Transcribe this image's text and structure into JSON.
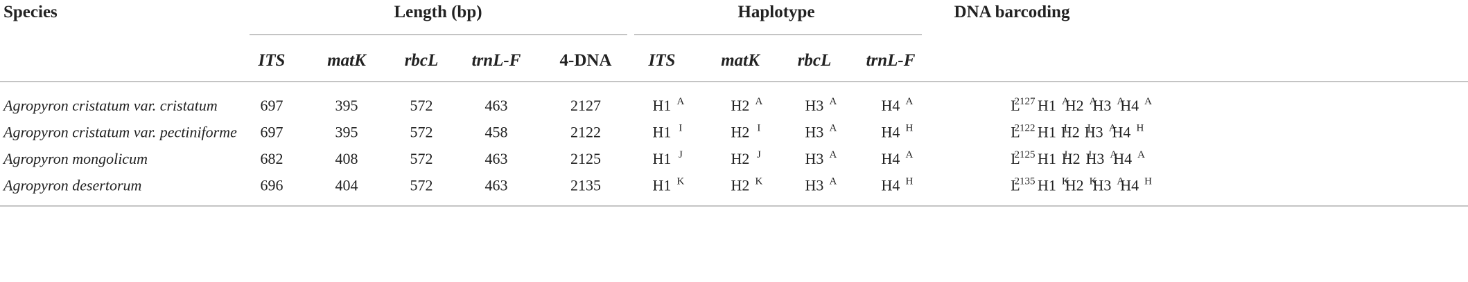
{
  "header": {
    "species": "Species",
    "length": "Length (bp)",
    "haplotype": "Haplotype",
    "barcoding": "DNA barcoding",
    "length_columns": [
      "ITS",
      "matK",
      "rbcL",
      "trnL-F",
      "4-DNA"
    ],
    "haplotype_columns": [
      "ITS",
      "matK",
      "rbcL",
      "trnL-F"
    ]
  },
  "rows": [
    {
      "species": "Agropyron cristatum var. cristatum",
      "lengths": [
        697,
        395,
        572,
        463,
        2127
      ],
      "haplotypes": [
        {
          "base": "H1",
          "sup": "A"
        },
        {
          "base": "H2",
          "sup": "A"
        },
        {
          "base": "H3",
          "sup": "A"
        },
        {
          "base": "H4",
          "sup": "A"
        }
      ],
      "barcode": [
        {
          "base": "L",
          "sup": "2127"
        },
        {
          "base": "H1",
          "sup": "A"
        },
        {
          "base": "H2",
          "sup": "A"
        },
        {
          "base": "H3",
          "sup": "A"
        },
        {
          "base": "H4",
          "sup": "A"
        }
      ]
    },
    {
      "species": "Agropyron cristatum var. pectiniforme",
      "lengths": [
        697,
        395,
        572,
        458,
        2122
      ],
      "haplotypes": [
        {
          "base": "H1",
          "sup": "I"
        },
        {
          "base": "H2",
          "sup": "I"
        },
        {
          "base": "H3",
          "sup": "A"
        },
        {
          "base": "H4",
          "sup": "H"
        }
      ],
      "barcode": [
        {
          "base": "L",
          "sup": "2122"
        },
        {
          "base": "H1",
          "sup": "I"
        },
        {
          "base": "H2",
          "sup": "I"
        },
        {
          "base": "H3",
          "sup": "A"
        },
        {
          "base": "H4",
          "sup": "H"
        }
      ]
    },
    {
      "species": "Agropyron mongolicum",
      "lengths": [
        682,
        408,
        572,
        463,
        2125
      ],
      "haplotypes": [
        {
          "base": "H1",
          "sup": "J"
        },
        {
          "base": "H2",
          "sup": "J"
        },
        {
          "base": "H3",
          "sup": "A"
        },
        {
          "base": "H4",
          "sup": "A"
        }
      ],
      "barcode": [
        {
          "base": "L",
          "sup": "2125"
        },
        {
          "base": "H1",
          "sup": "J"
        },
        {
          "base": "H2",
          "sup": "J"
        },
        {
          "base": "H3",
          "sup": "A"
        },
        {
          "base": "H4",
          "sup": "A"
        }
      ]
    },
    {
      "species": "Agropyron desertorum",
      "lengths": [
        696,
        404,
        572,
        463,
        2135
      ],
      "haplotypes": [
        {
          "base": "H1",
          "sup": "K"
        },
        {
          "base": "H2",
          "sup": "K"
        },
        {
          "base": "H3",
          "sup": "A"
        },
        {
          "base": "H4",
          "sup": "H"
        }
      ],
      "barcode": [
        {
          "base": "L",
          "sup": "2135"
        },
        {
          "base": "H1",
          "sup": "K"
        },
        {
          "base": "H2",
          "sup": "K"
        },
        {
          "base": "H3",
          "sup": "A"
        },
        {
          "base": "H4",
          "sup": "H"
        }
      ]
    }
  ]
}
